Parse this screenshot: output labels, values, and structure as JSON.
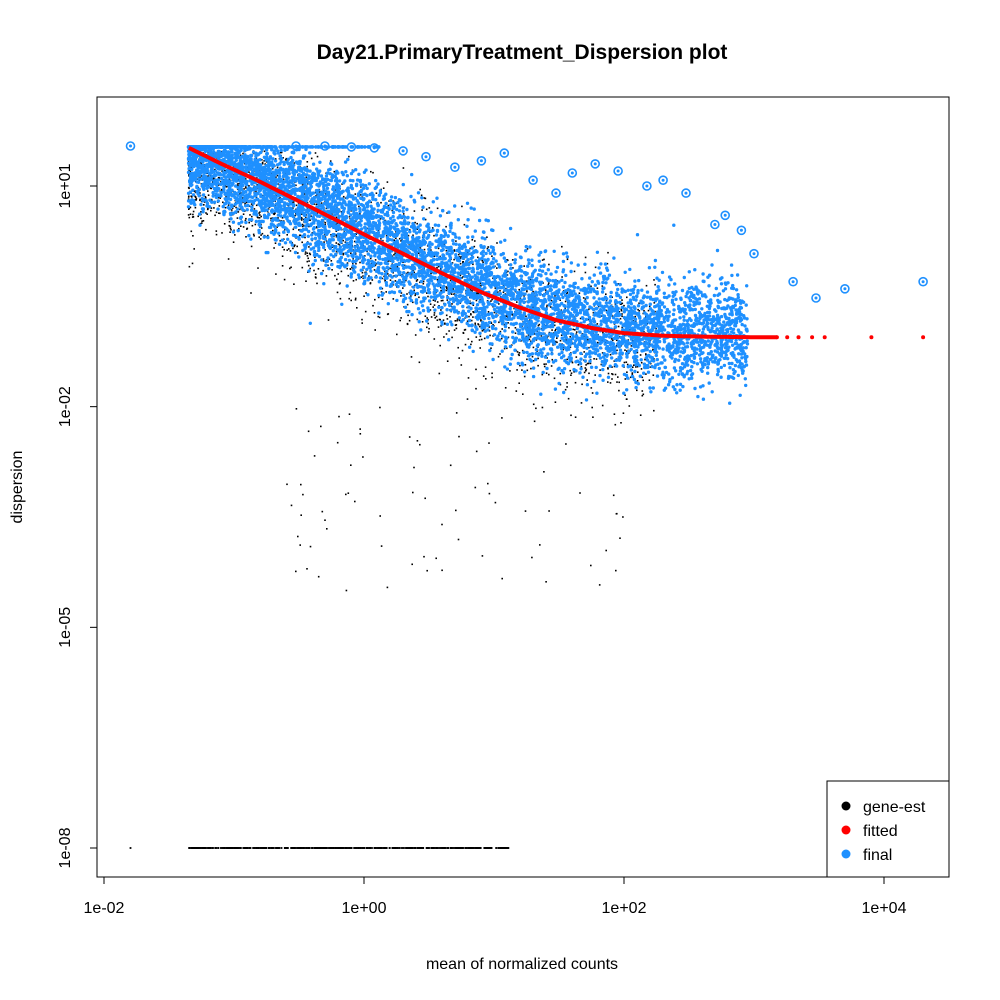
{
  "chart_data": {
    "type": "scatter",
    "title": "Day21.PrimaryTreatment_Dispersion plot",
    "xlabel": "mean of normalized counts",
    "ylabel": "dispersion",
    "x_scale": "log10",
    "y_scale": "log10",
    "xlim": [
      0.01,
      20000
    ],
    "ylim": [
      5e-09,
      60
    ],
    "x_ticks": [
      {
        "value": 0.01,
        "label": "1e-02"
      },
      {
        "value": 1,
        "label": "1e+00"
      },
      {
        "value": 100,
        "label": "1e+02"
      },
      {
        "value": 10000,
        "label": "1e+04"
      }
    ],
    "y_ticks": [
      {
        "value": 1e-08,
        "label": "1e-08"
      },
      {
        "value": 1e-05,
        "label": "1e-05"
      },
      {
        "value": 0.01,
        "label": "1e-02"
      },
      {
        "value": 10,
        "label": "1e+01"
      }
    ],
    "legend": {
      "position": "bottom-right",
      "entries": [
        {
          "label": "gene-est",
          "color": "#000000"
        },
        {
          "label": "fitted",
          "color": "#ff0000"
        },
        {
          "label": "final",
          "color": "#1e90ff"
        }
      ]
    },
    "series": [
      {
        "name": "fitted",
        "color": "#ff0000",
        "x": [
          0.045,
          0.08,
          0.15,
          0.3,
          0.6,
          1,
          2,
          4,
          8,
          15,
          30,
          60,
          100,
          200,
          500,
          1000,
          2000,
          5000,
          8000,
          20000
        ],
        "y": [
          33,
          20,
          12,
          6.5,
          3.5,
          2.2,
          1.2,
          0.65,
          0.36,
          0.23,
          0.15,
          0.115,
          0.1,
          0.092,
          0.089,
          0.088,
          0.088,
          0.088,
          0.088,
          0.088
        ]
      },
      {
        "name": "final",
        "color": "#1e90ff",
        "description_range": "dense cloud spanning x 0.015–20000 around the fitted trend",
        "x": [
          0.016,
          0.3,
          0.5,
          0.8,
          1.2,
          2,
          3,
          5,
          8,
          12,
          20,
          30,
          40,
          60,
          90,
          150,
          200,
          300,
          500,
          600,
          800,
          1000,
          2000,
          3000,
          5000,
          20000
        ],
        "y": [
          35,
          35,
          35,
          34,
          33,
          30,
          25,
          18,
          22,
          28,
          12,
          8,
          15,
          20,
          16,
          10,
          12,
          8,
          3,
          4,
          2.5,
          1.2,
          0.5,
          0.3,
          0.4,
          0.5
        ]
      },
      {
        "name": "gene-est",
        "color": "#000000",
        "x": [
          0.016,
          0.05,
          0.1,
          0.2,
          0.5,
          1,
          2,
          3,
          5,
          10
        ],
        "y": [
          1e-08,
          1e-08,
          1e-08,
          1e-08,
          1e-08,
          1e-08,
          1e-08,
          1e-08,
          1e-08,
          1e-08
        ]
      }
    ]
  }
}
